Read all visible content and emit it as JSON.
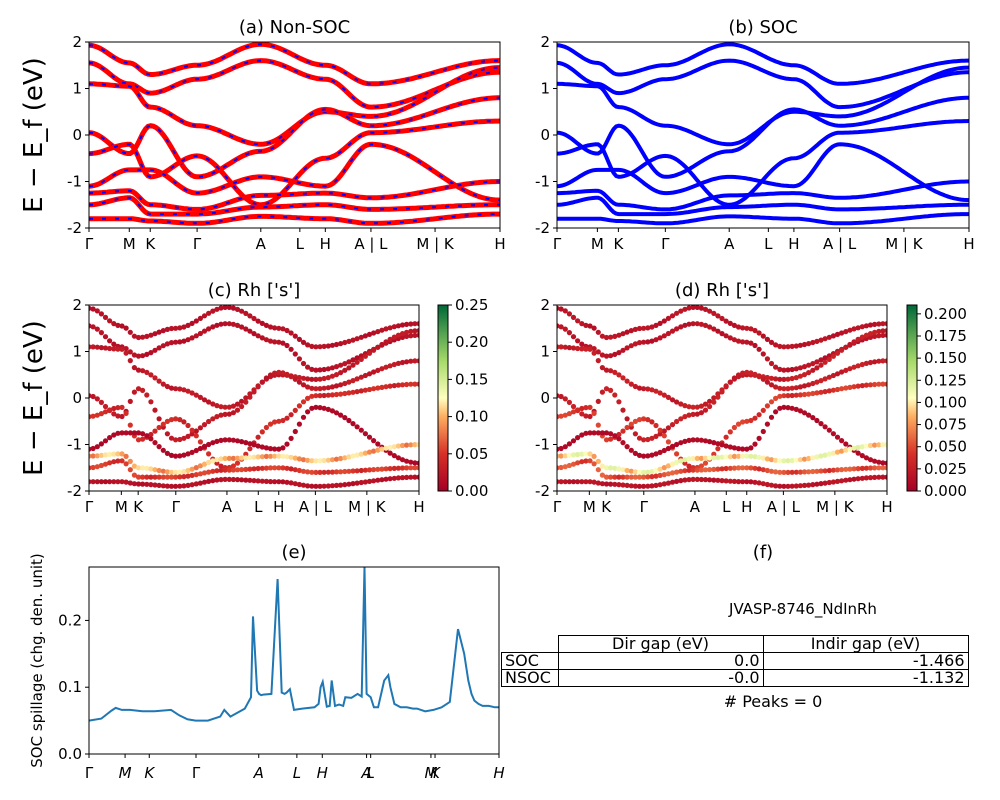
{
  "ylabel_bands": "E − E_f (eV)",
  "chart_data": [
    {
      "panel": "a",
      "type": "line",
      "title": "(a) Non-SOC",
      "ylim": [
        -2,
        2
      ],
      "yticks": [
        -2,
        -1,
        0,
        1,
        2
      ],
      "xtick_labels": [
        "Γ",
        "M",
        "K",
        "Γ",
        "A",
        "L",
        "H",
        "A | L",
        "M | K",
        "H"
      ],
      "series_colors": [
        "#ff0000",
        "#0000ff"
      ],
      "style": "red solid with blue dashed overlay",
      "bands": [
        [
          1.93,
          1.55,
          1.3,
          1.5,
          1.95,
          1.5,
          1.1,
          1.6
        ],
        [
          1.55,
          1.1,
          0.9,
          1.2,
          1.6,
          1.2,
          0.6,
          1.35
        ],
        [
          1.1,
          1.05,
          0.6,
          0.2,
          -0.2,
          0.5,
          0.4,
          1.45
        ],
        [
          0.05,
          -0.4,
          0.2,
          -0.9,
          -0.35,
          0.55,
          0.2,
          0.8
        ],
        [
          -0.4,
          -0.2,
          -0.9,
          -0.45,
          -1.5,
          -0.5,
          0.05,
          0.3
        ],
        [
          -1.1,
          -0.75,
          -0.75,
          -1.25,
          -0.9,
          -1.1,
          -0.2,
          -1.4
        ],
        [
          -1.25,
          -1.2,
          -1.5,
          -1.6,
          -1.3,
          -1.25,
          -1.35,
          -1.0
        ],
        [
          -1.5,
          -1.35,
          -1.7,
          -1.7,
          -1.55,
          -1.5,
          -1.6,
          -1.5
        ],
        [
          -1.8,
          -1.8,
          -1.85,
          -1.9,
          -1.75,
          -1.8,
          -1.9,
          -1.7
        ]
      ]
    },
    {
      "panel": "b",
      "type": "line",
      "title": "(b) SOC",
      "ylim": [
        -2,
        2
      ],
      "yticks": [
        -2,
        -1,
        0,
        1,
        2
      ],
      "xtick_labels": [
        "Γ",
        "M",
        "K",
        "Γ",
        "A",
        "L",
        "H",
        "A | L",
        "M | K",
        "H"
      ],
      "series_colors": [
        "#0000ff"
      ],
      "bands": [
        [
          1.93,
          1.55,
          1.3,
          1.5,
          1.95,
          1.5,
          1.1,
          1.6
        ],
        [
          1.55,
          1.1,
          0.9,
          1.2,
          1.6,
          1.2,
          0.6,
          1.35
        ],
        [
          1.1,
          1.05,
          0.6,
          0.2,
          -0.2,
          0.5,
          0.4,
          1.45
        ],
        [
          0.05,
          -0.4,
          0.2,
          -0.9,
          -0.35,
          0.55,
          0.2,
          0.8
        ],
        [
          -0.4,
          -0.2,
          -0.9,
          -0.45,
          -1.5,
          -0.5,
          0.05,
          0.3
        ],
        [
          -1.1,
          -0.75,
          -0.75,
          -1.25,
          -0.9,
          -1.1,
          -0.2,
          -1.4
        ],
        [
          -1.25,
          -1.2,
          -1.5,
          -1.6,
          -1.3,
          -1.25,
          -1.35,
          -1.0
        ],
        [
          -1.5,
          -1.35,
          -1.7,
          -1.7,
          -1.55,
          -1.5,
          -1.6,
          -1.5
        ],
        [
          -1.8,
          -1.8,
          -1.85,
          -1.9,
          -1.75,
          -1.8,
          -1.9,
          -1.7
        ]
      ]
    },
    {
      "panel": "c",
      "type": "scatter",
      "title": "(c)  Rh ['s']",
      "ylim": [
        -2,
        2
      ],
      "yticks": [
        -2,
        -1,
        0,
        1,
        2
      ],
      "xtick_labels": [
        "Γ",
        "M",
        "K",
        "Γ",
        "A",
        "L",
        "H",
        "A | L",
        "M | K",
        "H"
      ],
      "colormap": "RdYlGn",
      "colorbar_range": [
        0,
        0.25
      ],
      "colorbar_ticks": [
        "0.00",
        "0.05",
        "0.10",
        "0.15",
        "0.20",
        "0.25"
      ],
      "bands": [
        [
          1.93,
          1.55,
          1.3,
          1.5,
          1.95,
          1.5,
          1.1,
          1.6
        ],
        [
          1.55,
          1.1,
          0.9,
          1.2,
          1.6,
          1.2,
          0.6,
          1.35
        ],
        [
          1.1,
          1.05,
          0.6,
          0.2,
          -0.2,
          0.5,
          0.4,
          1.45
        ],
        [
          0.05,
          -0.4,
          0.2,
          -0.9,
          -0.35,
          0.55,
          0.2,
          0.8
        ],
        [
          -0.4,
          -0.2,
          -0.9,
          -0.45,
          -1.5,
          -0.5,
          0.05,
          0.3
        ],
        [
          -1.1,
          -0.75,
          -0.75,
          -1.25,
          -0.9,
          -1.1,
          -0.2,
          -1.4
        ],
        [
          -1.25,
          -1.2,
          -1.5,
          -1.6,
          -1.3,
          -1.25,
          -1.35,
          -1.0
        ],
        [
          -1.5,
          -1.35,
          -1.7,
          -1.7,
          -1.55,
          -1.5,
          -1.6,
          -1.5
        ],
        [
          -1.8,
          -1.8,
          -1.85,
          -1.9,
          -1.75,
          -1.8,
          -1.9,
          -1.7
        ]
      ],
      "band_weights": [
        0.02,
        0.02,
        0.03,
        0.03,
        0.05,
        0.01,
        0.12,
        0.06,
        0.02
      ]
    },
    {
      "panel": "d",
      "type": "scatter",
      "title": "(d) Rh ['s']",
      "ylim": [
        -2,
        2
      ],
      "yticks": [
        -2,
        -1,
        0,
        1,
        2
      ],
      "xtick_labels": [
        "Γ",
        "M",
        "K",
        "Γ",
        "A",
        "L",
        "H",
        "A | L",
        "M | K",
        "H"
      ],
      "colormap": "RdYlGn",
      "colorbar_range": [
        0,
        0.21
      ],
      "colorbar_ticks": [
        "0.000",
        "0.025",
        "0.050",
        "0.075",
        "0.100",
        "0.125",
        "0.150",
        "0.175",
        "0.200"
      ],
      "bands": [
        [
          1.93,
          1.55,
          1.3,
          1.5,
          1.95,
          1.5,
          1.1,
          1.6
        ],
        [
          1.55,
          1.1,
          0.9,
          1.2,
          1.6,
          1.2,
          0.6,
          1.35
        ],
        [
          1.1,
          1.05,
          0.6,
          0.2,
          -0.2,
          0.5,
          0.4,
          1.45
        ],
        [
          0.05,
          -0.4,
          0.2,
          -0.9,
          -0.35,
          0.55,
          0.2,
          0.8
        ],
        [
          -0.4,
          -0.2,
          -0.9,
          -0.45,
          -1.5,
          -0.5,
          0.05,
          0.3
        ],
        [
          -1.1,
          -0.75,
          -0.75,
          -1.25,
          -0.9,
          -1.1,
          -0.2,
          -1.4
        ],
        [
          -1.25,
          -1.2,
          -1.5,
          -1.6,
          -1.3,
          -1.25,
          -1.35,
          -1.0
        ],
        [
          -1.5,
          -1.35,
          -1.7,
          -1.7,
          -1.55,
          -1.5,
          -1.6,
          -1.5
        ],
        [
          -1.8,
          -1.8,
          -1.85,
          -1.9,
          -1.75,
          -1.8,
          -1.9,
          -1.7
        ]
      ],
      "band_weights": [
        0.02,
        0.02,
        0.03,
        0.03,
        0.05,
        0.01,
        0.12,
        0.06,
        0.02
      ]
    },
    {
      "panel": "e",
      "type": "line",
      "title": "(e)",
      "ylabel": "SOC spillage (chg. den. unit)",
      "ylim": [
        0,
        0.28
      ],
      "yticks": [
        0.0,
        0.1,
        0.2
      ],
      "xlim": [
        0,
        1
      ],
      "xtick_labels": [
        "Γ",
        "M",
        "K",
        "Γ",
        "A",
        "L",
        "H",
        "A",
        "L",
        "M",
        "K",
        "H"
      ],
      "xtick_positions": [
        0,
        0.088,
        0.147,
        0.261,
        0.414,
        0.507,
        0.569,
        0.677,
        0.687,
        0.834,
        0.844,
        1.0
      ],
      "color": "#1f77b4",
      "x": [
        0,
        0.03,
        0.055,
        0.065,
        0.08,
        0.1,
        0.13,
        0.16,
        0.2,
        0.22,
        0.24,
        0.26,
        0.29,
        0.32,
        0.33,
        0.345,
        0.38,
        0.395,
        0.4,
        0.41,
        0.415,
        0.42,
        0.425,
        0.445,
        0.46,
        0.47,
        0.477,
        0.482,
        0.49,
        0.5,
        0.52,
        0.55,
        0.56,
        0.565,
        0.57,
        0.58,
        0.587,
        0.592,
        0.6,
        0.61,
        0.62,
        0.625,
        0.64,
        0.655,
        0.665,
        0.672,
        0.677,
        0.687,
        0.695,
        0.705,
        0.72,
        0.73,
        0.735,
        0.745,
        0.76,
        0.775,
        0.79,
        0.8,
        0.82,
        0.84,
        0.86,
        0.88,
        0.9,
        0.915,
        0.925,
        0.933,
        0.94,
        0.95,
        0.96,
        0.975,
        0.99,
        1.0
      ],
      "y": [
        0.05,
        0.053,
        0.065,
        0.069,
        0.066,
        0.066,
        0.064,
        0.064,
        0.066,
        0.058,
        0.052,
        0.05,
        0.05,
        0.056,
        0.066,
        0.056,
        0.068,
        0.085,
        0.206,
        0.095,
        0.09,
        0.088,
        0.089,
        0.09,
        0.262,
        0.092,
        0.09,
        0.092,
        0.097,
        0.066,
        0.068,
        0.07,
        0.075,
        0.1,
        0.108,
        0.071,
        0.072,
        0.11,
        0.072,
        0.074,
        0.072,
        0.085,
        0.084,
        0.09,
        0.086,
        0.28,
        0.09,
        0.085,
        0.07,
        0.07,
        0.11,
        0.118,
        0.1,
        0.075,
        0.07,
        0.07,
        0.068,
        0.068,
        0.064,
        0.066,
        0.07,
        0.078,
        0.187,
        0.15,
        0.11,
        0.09,
        0.08,
        0.075,
        0.072,
        0.072,
        0.07,
        0.07
      ]
    },
    {
      "panel": "f",
      "type": "table",
      "title": "(f)",
      "material": "JVASP-8746_NdInRh",
      "columns": [
        "Dir gap (eV)",
        "Indir gap (eV)"
      ],
      "rows": [
        {
          "label": "SOC",
          "values": [
            "0.0",
            "-1.466"
          ]
        },
        {
          "label": "NSOC",
          "values": [
            "-0.0",
            "-1.132"
          ]
        }
      ],
      "footer": "# Peaks = 0"
    }
  ]
}
